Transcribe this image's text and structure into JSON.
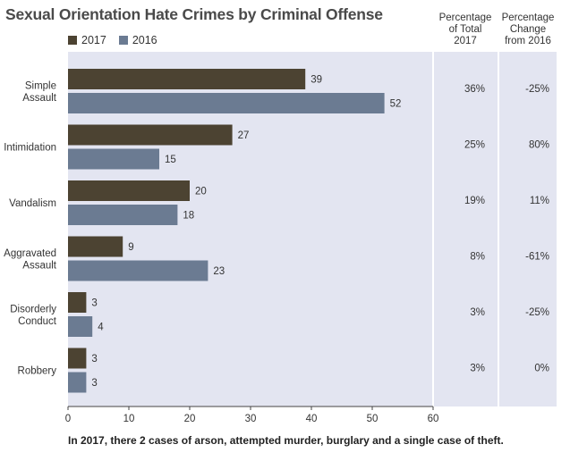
{
  "title": "Sexual Orientation Hate Crimes by Criminal Offense",
  "legend": [
    {
      "label": "2017",
      "color": "#4c4332"
    },
    {
      "label": "2016",
      "color": "#6b7b92"
    }
  ],
  "columns": {
    "pct_total": "Percentage\nof Total\n2017",
    "pct_change": "Percentage\nChange\nfrom 2016"
  },
  "footnote": "In 2017, there 2 cases of arson, attempted murder, burglary and a single case of theft.",
  "colors": {
    "panel_background": "#e3e5f1",
    "bar_2017": "#4c4332",
    "bar_2016": "#6b7b92",
    "text": "#333333"
  },
  "chart_data": {
    "type": "bar",
    "orientation": "horizontal",
    "categories": [
      "Simple\nAssault",
      "Intimidation",
      "Vandalism",
      "Aggravated\nAssault",
      "Disorderly\nConduct",
      "Robbery"
    ],
    "series": [
      {
        "name": "2017",
        "values": [
          39,
          27,
          20,
          9,
          3,
          3
        ]
      },
      {
        "name": "2016",
        "values": [
          52,
          15,
          18,
          23,
          4,
          3
        ]
      }
    ],
    "pct_of_total_2017": [
      "36%",
      "25%",
      "19%",
      "8%",
      "3%",
      "3%"
    ],
    "pct_change_from_2016": [
      "-25%",
      "80%",
      "11%",
      "-61%",
      "-25%",
      "0%"
    ],
    "xlim": [
      0,
      60
    ],
    "xticks": [
      0,
      10,
      20,
      30,
      40,
      50,
      60
    ],
    "grid": false,
    "legend_position": "top-left"
  }
}
